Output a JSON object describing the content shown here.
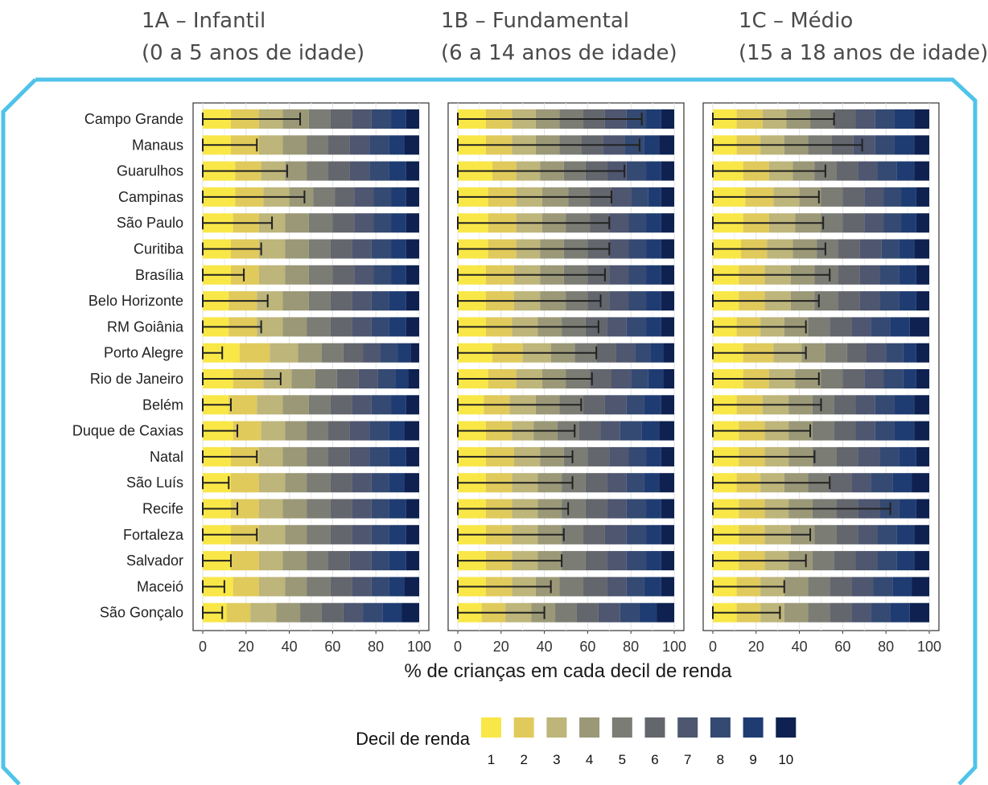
{
  "chart_data": {
    "type": "bar",
    "stacked": true,
    "orientation": "horizontal",
    "xlabel": "% de crianças em cada decil de renda",
    "xlim": [
      0,
      100
    ],
    "xticks": [
      0,
      20,
      40,
      60,
      80,
      100
    ],
    "grid": true,
    "legend": {
      "title": "Decil de renda",
      "position": "bottom",
      "labels": [
        "1",
        "2",
        "3",
        "4",
        "5",
        "6",
        "7",
        "8",
        "9",
        "10"
      ]
    },
    "decile_colors": [
      "#f9e747",
      "#e0ca5b",
      "#bdb57a",
      "#9b9878",
      "#7b7c74",
      "#63666c",
      "#4e5670",
      "#344a72",
      "#1f3c72",
      "#0e2150"
    ],
    "categories": [
      "Campo Grande",
      "Manaus",
      "Guarulhos",
      "Campinas",
      "São Paulo",
      "Curitiba",
      "Brasília",
      "Belo Horizonte",
      "RM Goiânia",
      "Porto Alegre",
      "Rio de Janeiro",
      "Belém",
      "Duque de Caxias",
      "Natal",
      "São Luís",
      "Recife",
      "Fortaleza",
      "Salvador",
      "Maceió",
      "São Gonçalo"
    ],
    "panels": [
      {
        "title": "1A – Infantil",
        "subtitle": "(0 a 5 anos de idade)",
        "errorbar_upper": [
          45,
          25,
          39,
          47,
          32,
          27,
          19,
          30,
          27,
          9,
          36,
          13,
          16,
          25,
          12,
          16,
          25,
          13,
          10,
          9
        ],
        "boundaries": [
          [
            13,
            26,
            37,
            49,
            59,
            69,
            78,
            87,
            94
          ],
          [
            13,
            26,
            37,
            48,
            58,
            68,
            77,
            86,
            93
          ],
          [
            15,
            27,
            38,
            48,
            58,
            68,
            77,
            86,
            94
          ],
          [
            15,
            28,
            40,
            51,
            61,
            70,
            79,
            87,
            94
          ],
          [
            14,
            26,
            38,
            49,
            60,
            70,
            79,
            87,
            94
          ],
          [
            13,
            26,
            38,
            49,
            59,
            69,
            78,
            87,
            94
          ],
          [
            13,
            26,
            38,
            49,
            60,
            70,
            79,
            87,
            94
          ],
          [
            12,
            25,
            37,
            49,
            59,
            69,
            78,
            86,
            94
          ],
          [
            12,
            25,
            37,
            48,
            59,
            69,
            78,
            86,
            94
          ],
          [
            17,
            31,
            44,
            55,
            65,
            74,
            82,
            90,
            96
          ],
          [
            14,
            28,
            41,
            52,
            62,
            72,
            81,
            89,
            95
          ],
          [
            12,
            25,
            37,
            49,
            59,
            69,
            78,
            87,
            94
          ],
          [
            14,
            27,
            38,
            48,
            58,
            68,
            77,
            86,
            93
          ],
          [
            13,
            26,
            37,
            48,
            58,
            68,
            77,
            86,
            94
          ],
          [
            13,
            26,
            38,
            48,
            59,
            69,
            78,
            86,
            93
          ],
          [
            13,
            26,
            37,
            48,
            59,
            69,
            78,
            86,
            94
          ],
          [
            13,
            26,
            38,
            48,
            59,
            69,
            78,
            86,
            94
          ],
          [
            13,
            26,
            37,
            48,
            58,
            68,
            78,
            86,
            94
          ],
          [
            14,
            26,
            38,
            48,
            59,
            69,
            78,
            86,
            93
          ],
          [
            11,
            22,
            34,
            45,
            55,
            65,
            74,
            83,
            92
          ]
        ]
      },
      {
        "title": "1B – Fundamental",
        "subtitle": "(6 a 14 anos de idade)",
        "errorbar_upper": [
          85,
          84,
          77,
          71,
          70,
          70,
          68,
          66,
          65,
          64,
          62,
          57,
          54,
          53,
          53,
          51,
          49,
          48,
          43,
          40
        ],
        "boundaries": [
          [
            13,
            25,
            36,
            47,
            58,
            68,
            78,
            87,
            94
          ],
          [
            13,
            25,
            36,
            47,
            57,
            67,
            77,
            86,
            93
          ],
          [
            16,
            27,
            38,
            49,
            59,
            69,
            78,
            87,
            94
          ],
          [
            14,
            27,
            39,
            51,
            61,
            71,
            80,
            88,
            94
          ],
          [
            14,
            27,
            39,
            50,
            61,
            70,
            79,
            87,
            94
          ],
          [
            14,
            27,
            38,
            49,
            60,
            70,
            79,
            87,
            94
          ],
          [
            13,
            26,
            38,
            49,
            60,
            70,
            79,
            87,
            94
          ],
          [
            13,
            26,
            38,
            50,
            60,
            70,
            79,
            87,
            94
          ],
          [
            13,
            25,
            37,
            48,
            59,
            69,
            78,
            87,
            94
          ],
          [
            16,
            30,
            43,
            54,
            64,
            73,
            82,
            89,
            95
          ],
          [
            14,
            27,
            39,
            50,
            61,
            71,
            80,
            88,
            95
          ],
          [
            12,
            24,
            36,
            47,
            58,
            68,
            78,
            86,
            94
          ],
          [
            13,
            25,
            35,
            46,
            56,
            66,
            75,
            85,
            93
          ],
          [
            13,
            26,
            38,
            49,
            60,
            70,
            79,
            87,
            94
          ],
          [
            13,
            25,
            37,
            48,
            59,
            69,
            78,
            86,
            93
          ],
          [
            13,
            25,
            37,
            48,
            59,
            69,
            78,
            87,
            94
          ],
          [
            13,
            25,
            37,
            48,
            58,
            68,
            78,
            87,
            94
          ],
          [
            13,
            25,
            37,
            48,
            59,
            69,
            78,
            87,
            94
          ],
          [
            13,
            25,
            36,
            47,
            58,
            69,
            78,
            86,
            94
          ],
          [
            11,
            22,
            34,
            45,
            55,
            65,
            75,
            84,
            92
          ]
        ]
      },
      {
        "title": "1C – Médio",
        "subtitle": "(15 a 18 anos de idade)",
        "errorbar_upper": [
          56,
          69,
          52,
          49,
          51,
          52,
          54,
          49,
          43,
          43,
          49,
          50,
          45,
          47,
          54,
          82,
          45,
          43,
          33,
          31
        ],
        "boundaries": [
          [
            11,
            23,
            34,
            45,
            56,
            66,
            75,
            84,
            93
          ],
          [
            11,
            22,
            33,
            44,
            55,
            65,
            75,
            84,
            93
          ],
          [
            14,
            26,
            37,
            47,
            57,
            67,
            76,
            85,
            93
          ],
          [
            15,
            28,
            40,
            50,
            60,
            70,
            79,
            87,
            94
          ],
          [
            14,
            26,
            38,
            50,
            60,
            70,
            79,
            87,
            94
          ],
          [
            13,
            25,
            37,
            48,
            58,
            68,
            78,
            86,
            93
          ],
          [
            12,
            24,
            36,
            47,
            58,
            68,
            77,
            86,
            94
          ],
          [
            12,
            24,
            36,
            47,
            58,
            68,
            77,
            86,
            94
          ],
          [
            11,
            22,
            33,
            44,
            54,
            64,
            73,
            82,
            91
          ],
          [
            14,
            28,
            41,
            52,
            62,
            71,
            80,
            88,
            94
          ],
          [
            14,
            26,
            38,
            50,
            60,
            70,
            79,
            88,
            94
          ],
          [
            11,
            23,
            35,
            46,
            56,
            66,
            75,
            84,
            93
          ],
          [
            12,
            24,
            35,
            46,
            56,
            66,
            75,
            84,
            93
          ],
          [
            12,
            24,
            35,
            46,
            57,
            67,
            77,
            86,
            94
          ],
          [
            11,
            22,
            33,
            44,
            54,
            64,
            73,
            83,
            92
          ],
          [
            12,
            24,
            35,
            46,
            57,
            67,
            77,
            86,
            94
          ],
          [
            12,
            24,
            36,
            47,
            57,
            67,
            76,
            85,
            93
          ],
          [
            12,
            24,
            35,
            46,
            56,
            66,
            76,
            85,
            93
          ],
          [
            11,
            22,
            33,
            44,
            54,
            64,
            74,
            83,
            92
          ],
          [
            11,
            22,
            33,
            44,
            54,
            64,
            73,
            82,
            91
          ]
        ]
      }
    ]
  },
  "colors": {
    "frame": "#4fc3e8",
    "panel_bg": "#ffffff",
    "errorbar": "#222222"
  }
}
